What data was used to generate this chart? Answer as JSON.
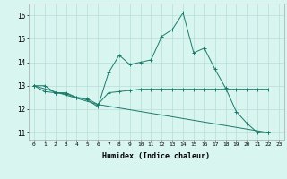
{
  "title": "",
  "xlabel": "Humidex (Indice chaleur)",
  "background_color": "#d8f5f0",
  "grid_color": "#b8ddd8",
  "line_color": "#1a7a6a",
  "xlim": [
    -0.5,
    23.5
  ],
  "ylim": [
    10.7,
    16.5
  ],
  "yticks": [
    11,
    12,
    13,
    14,
    15,
    16
  ],
  "xticks": [
    0,
    1,
    2,
    3,
    4,
    5,
    6,
    7,
    8,
    9,
    10,
    11,
    12,
    13,
    14,
    15,
    16,
    17,
    18,
    19,
    20,
    21,
    22,
    23
  ],
  "series1": [
    [
      0,
      13.0
    ],
    [
      1,
      13.0
    ],
    [
      2,
      12.7
    ],
    [
      3,
      12.7
    ],
    [
      4,
      12.5
    ],
    [
      5,
      12.4
    ],
    [
      6,
      12.1
    ],
    [
      7,
      13.55
    ],
    [
      8,
      14.3
    ],
    [
      9,
      13.9
    ],
    [
      10,
      14.0
    ],
    [
      11,
      14.1
    ],
    [
      12,
      15.1
    ],
    [
      13,
      15.4
    ],
    [
      14,
      16.1
    ],
    [
      15,
      14.4
    ],
    [
      16,
      14.6
    ],
    [
      17,
      13.7
    ],
    [
      18,
      12.9
    ],
    [
      19,
      11.9
    ],
    [
      20,
      11.4
    ],
    [
      21,
      11.0
    ],
    [
      22,
      11.0
    ]
  ],
  "series2": [
    [
      0,
      13.0
    ],
    [
      1,
      12.75
    ],
    [
      2,
      12.7
    ],
    [
      3,
      12.65
    ],
    [
      4,
      12.5
    ],
    [
      5,
      12.45
    ],
    [
      6,
      12.2
    ],
    [
      7,
      12.7
    ],
    [
      8,
      12.75
    ],
    [
      9,
      12.8
    ],
    [
      10,
      12.85
    ],
    [
      11,
      12.85
    ],
    [
      12,
      12.85
    ],
    [
      13,
      12.85
    ],
    [
      14,
      12.85
    ],
    [
      15,
      12.85
    ],
    [
      16,
      12.85
    ],
    [
      17,
      12.85
    ],
    [
      18,
      12.85
    ],
    [
      19,
      12.85
    ],
    [
      20,
      12.85
    ],
    [
      21,
      12.85
    ],
    [
      22,
      12.85
    ]
  ],
  "series3": [
    [
      0,
      13.0
    ],
    [
      6,
      12.2
    ],
    [
      22,
      11.0
    ]
  ]
}
